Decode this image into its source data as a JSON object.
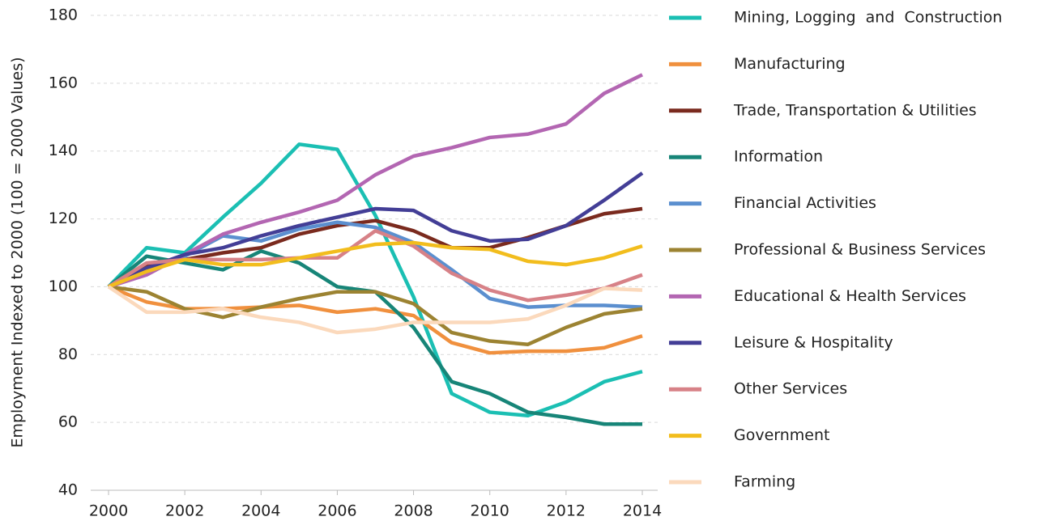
{
  "chart_data": {
    "type": "line",
    "y_label": "Employment Indexed to 2000 (100 = 2000 Values)",
    "x": [
      2000,
      2001,
      2002,
      2003,
      2004,
      2005,
      2006,
      2007,
      2008,
      2009,
      2010,
      2011,
      2012,
      2013,
      2014
    ],
    "xlim": [
      2000,
      2014
    ],
    "xticks": [
      2000,
      2002,
      2004,
      2006,
      2008,
      2010,
      2012,
      2014
    ],
    "ylim": [
      40,
      180
    ],
    "yticks": [
      40,
      60,
      80,
      100,
      120,
      140,
      160,
      180
    ],
    "grid": true,
    "legend": "right",
    "series": [
      {
        "name": "Mining, Logging  and  Construction",
        "color": "#1bbfb3",
        "values": [
          100,
          111.5,
          110,
          120.5,
          130.5,
          142,
          140.5,
          121,
          97,
          68.5,
          63,
          62,
          66,
          72,
          75
        ]
      },
      {
        "name": "Manufacturing",
        "color": "#f0903e",
        "values": [
          100,
          95.5,
          93.5,
          93.5,
          94,
          94.5,
          92.5,
          93.5,
          91.5,
          83.5,
          80.5,
          81,
          81,
          82,
          85.5
        ]
      },
      {
        "name": "Trade, Transportation & Utilities",
        "color": "#7a2a1e",
        "values": [
          100,
          106,
          108,
          110,
          111.5,
          115.5,
          118,
          119.5,
          116.5,
          111.5,
          111.5,
          114.5,
          118,
          121.5,
          123
        ]
      },
      {
        "name": "Information",
        "color": "#178578",
        "values": [
          100,
          109,
          107,
          105,
          110.5,
          107,
          100,
          98.5,
          88,
          72,
          68.5,
          63,
          61.5,
          59.5,
          59.5
        ]
      },
      {
        "name": "Financial Activities",
        "color": "#5b8fcf",
        "values": [
          100,
          105.5,
          109,
          115,
          113.5,
          117,
          119,
          117.5,
          113,
          105,
          96.5,
          94,
          94.5,
          94.5,
          94
        ]
      },
      {
        "name": "Professional & Business Services",
        "color": "#9c8332",
        "values": [
          100,
          98.5,
          93.5,
          91,
          94,
          96.5,
          98.5,
          98.5,
          95,
          86.5,
          84,
          83,
          88,
          92,
          93.5
        ]
      },
      {
        "name": "Educational & Health Services",
        "color": "#b366b2",
        "values": [
          100,
          103.5,
          109.5,
          115.5,
          119,
          122,
          125.5,
          133,
          138.5,
          141,
          144,
          145,
          148,
          157,
          162.5
        ]
      },
      {
        "name": "Leisure & Hospitality",
        "color": "#433e96",
        "values": [
          100,
          105.5,
          109.5,
          111.5,
          115,
          118,
          120.5,
          123,
          122.5,
          116.5,
          113.5,
          114,
          118,
          125.5,
          133.5
        ]
      },
      {
        "name": "Other Services",
        "color": "#d78187",
        "values": [
          100,
          107,
          108,
          108,
          108,
          108.5,
          108.5,
          116.5,
          112,
          104,
          99,
          96,
          97.5,
          99.5,
          103.5
        ]
      },
      {
        "name": "Government",
        "color": "#f2bd1d",
        "values": [
          100,
          104.5,
          108,
          106.5,
          106.5,
          108.5,
          110.5,
          112.5,
          113,
          111.5,
          111,
          107.5,
          106.5,
          108.5,
          112
        ]
      },
      {
        "name": "Farming",
        "color": "#fbd9bc",
        "values": [
          100,
          92.5,
          92.5,
          93.5,
          91,
          89.5,
          86.5,
          87.5,
          89.5,
          89.5,
          89.5,
          90.5,
          94.5,
          99.5,
          99
        ]
      }
    ]
  }
}
